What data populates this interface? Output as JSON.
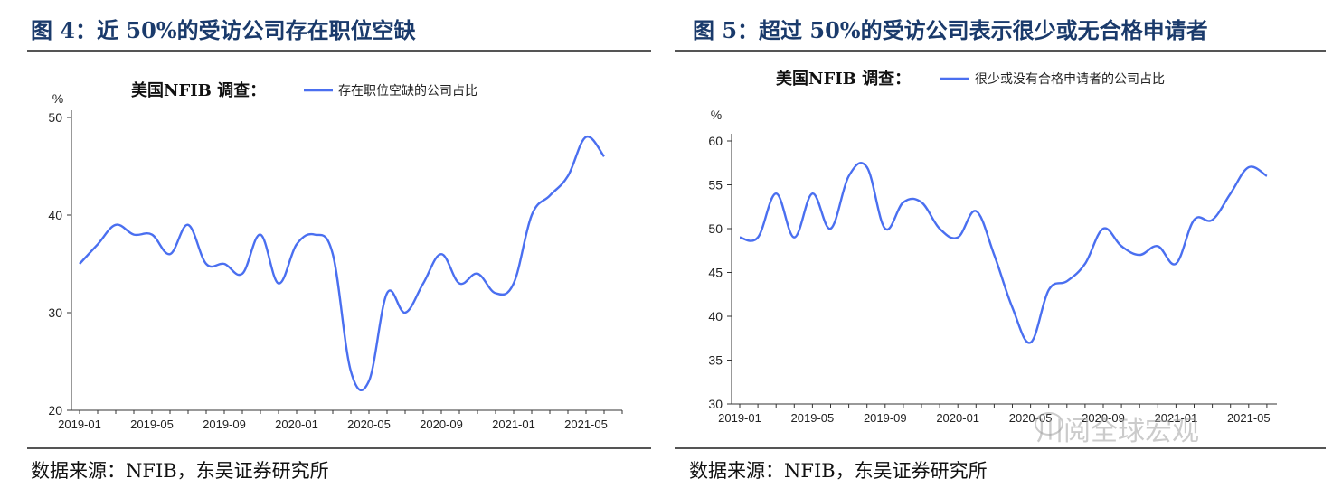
{
  "left": {
    "title": "图 4：近 50%的受访公司存在职位空缺",
    "source": "数据来源：NFIB，东吴证券研究所",
    "chart_data": {
      "type": "line",
      "unit": "%",
      "legend_prefix": "美国NFIB 调查：",
      "series": [
        {
          "name": "存在职位空缺的公司占比",
          "color": "#4a6ff0",
          "values": [
            35,
            37,
            39,
            38,
            38,
            36,
            39,
            35,
            35,
            34,
            38,
            33,
            37,
            38,
            36,
            24,
            23,
            32,
            30,
            33,
            36,
            33,
            34,
            32,
            33,
            40,
            42,
            44,
            48,
            46
          ]
        }
      ],
      "x_start": "2019-01",
      "x_ticks": [
        "2019-01",
        "2019-05",
        "2019-09",
        "2020-01",
        "2020-05",
        "2020-09",
        "2021-01",
        "2021-05"
      ],
      "y_ticks": [
        "20",
        "30",
        "40",
        "50"
      ],
      "ylim": [
        20,
        50
      ]
    }
  },
  "right": {
    "title": "图 5：超过 50%的受访公司表示很少或无合格申请者",
    "source": "数据来源：NFIB，东吴证券研究所",
    "watermark": "川阅全球宏观",
    "chart_data": {
      "type": "line",
      "unit": "%",
      "legend_prefix": "美国NFIB 调查：",
      "series": [
        {
          "name": "很少或没有合格申请者的公司占比",
          "color": "#4a6ff0",
          "values": [
            49,
            49,
            54,
            49,
            54,
            50,
            56,
            57,
            50,
            53,
            53,
            50,
            49,
            52,
            47,
            41,
            37,
            43,
            44,
            46,
            50,
            48,
            47,
            48,
            46,
            51,
            51,
            54,
            57,
            56
          ]
        }
      ],
      "x_start": "2019-01",
      "x_ticks": [
        "2019-01",
        "2019-05",
        "2019-09",
        "2020-01",
        "2020-05",
        "2020-09",
        "2021-01",
        "2021-05"
      ],
      "y_ticks": [
        "30",
        "35",
        "40",
        "45",
        "50",
        "55",
        "60"
      ],
      "ylim": [
        30,
        60
      ]
    }
  }
}
